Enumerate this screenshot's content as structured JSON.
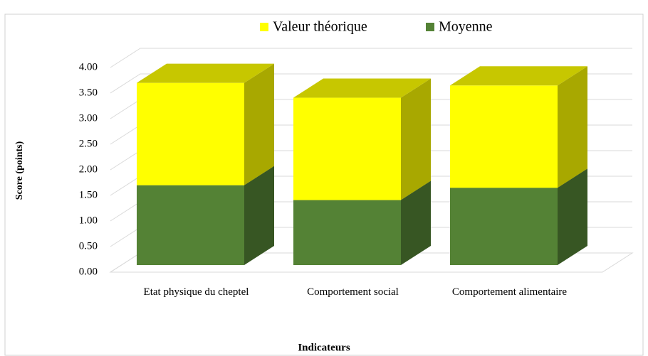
{
  "chart_data": {
    "type": "bar3d_stacked",
    "categories": [
      "Etat physique du cheptel",
      "Comportement social",
      "Comportement alimentaire"
    ],
    "series": [
      {
        "name": "Valeur théorique",
        "color": "#ffff00",
        "values": [
          2.0,
          2.0,
          2.0
        ]
      },
      {
        "name": "Moyenne",
        "color": "#548235",
        "values": [
          1.56,
          1.27,
          1.51
        ]
      }
    ],
    "ylim": [
      0,
      4
    ],
    "yticks": [
      {
        "value": 0,
        "label": "0.00"
      },
      {
        "value": 0.5,
        "label": "0.50"
      },
      {
        "value": 1,
        "label": "1.00"
      },
      {
        "value": 1.5,
        "label": "1.50"
      },
      {
        "value": 2,
        "label": "2.00"
      },
      {
        "value": 2.5,
        "label": "2.50"
      },
      {
        "value": 3,
        "label": "3.00"
      },
      {
        "value": 3.5,
        "label": "3.50"
      },
      {
        "value": 4,
        "label": "4.00"
      }
    ],
    "ylabel": "Score (points)",
    "xlabel": "Indicateurs",
    "grid": true,
    "legend": "top"
  }
}
